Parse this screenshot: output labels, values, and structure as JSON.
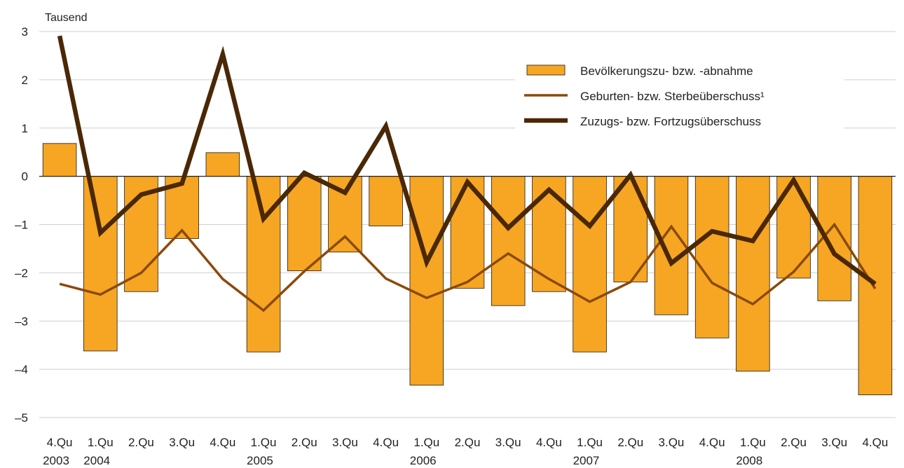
{
  "chart_data": {
    "type": "bar",
    "unit_label": "Tausend",
    "categories": [
      "4.Qu",
      "1.Qu",
      "2.Qu",
      "3.Qu",
      "4.Qu",
      "1.Qu",
      "2.Qu",
      "3.Qu",
      "4.Qu",
      "1.Qu",
      "2.Qu",
      "3.Qu",
      "4.Qu",
      "1.Qu",
      "2.Qu",
      "3.Qu",
      "4.Qu",
      "1.Qu",
      "2.Qu",
      "3.Qu",
      "4.Qu"
    ],
    "years": [
      {
        "label": "2003",
        "index": 0
      },
      {
        "label": "2004",
        "index": 1
      },
      {
        "label": "2005",
        "index": 5
      },
      {
        "label": "2006",
        "index": 9
      },
      {
        "label": "2007",
        "index": 13
      },
      {
        "label": "2008",
        "index": 17
      }
    ],
    "ylim": [
      -5,
      3
    ],
    "yticks": [
      3,
      2,
      1,
      0,
      -1,
      -2,
      -3,
      -4,
      -5
    ],
    "ytick_labels": [
      "3",
      "2",
      "1",
      "0",
      "–1",
      "–2",
      "–3",
      "–4",
      "–5"
    ],
    "grid": true,
    "legend_position": "top-right",
    "series": [
      {
        "name": "Bevölkerungszu- bzw. -abnahme",
        "type": "bar",
        "color": "#f6a623",
        "values": [
          0.68,
          -3.62,
          -2.39,
          -1.29,
          0.49,
          -3.64,
          -1.96,
          -1.57,
          -1.03,
          -4.33,
          -2.32,
          -2.68,
          -2.39,
          -3.64,
          -2.19,
          -2.87,
          -3.35,
          -4.04,
          -2.11,
          -2.58,
          -4.53
        ]
      },
      {
        "name": "Geburten- bzw. Sterbeüberschuss¹",
        "type": "line",
        "color": "#8b4a0c",
        "values": [
          -2.23,
          -2.45,
          -2.0,
          -1.12,
          -2.13,
          -2.78,
          -1.97,
          -1.25,
          -2.12,
          -2.52,
          -2.19,
          -1.6,
          -2.13,
          -2.6,
          -2.19,
          -1.04,
          -2.21,
          -2.65,
          -1.98,
          -1.0,
          -2.33
        ]
      },
      {
        "name": "Zuzugs- bzw. Fortzugsüberschuss",
        "type": "line",
        "color": "#4a2806",
        "values": [
          2.91,
          -1.17,
          -0.38,
          -0.15,
          2.53,
          -0.88,
          0.07,
          -0.34,
          1.04,
          -1.78,
          -0.12,
          -1.07,
          -0.28,
          -1.03,
          0.03,
          -1.8,
          -1.14,
          -1.34,
          -0.08,
          -1.61,
          -2.23
        ]
      }
    ]
  }
}
